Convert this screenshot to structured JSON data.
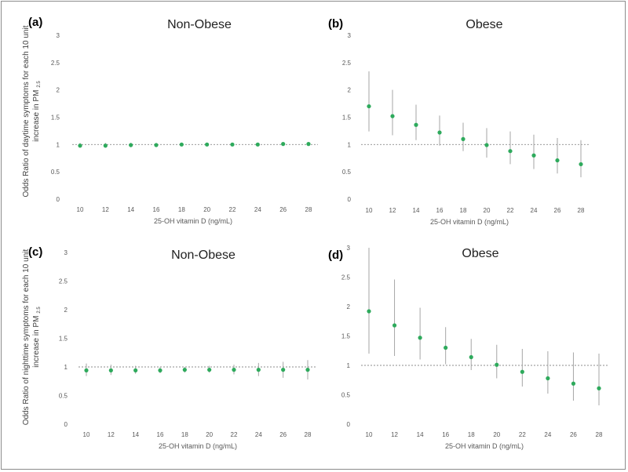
{
  "ylabels": {
    "top": {
      "line1": "Odds Ratio of daytime symptoms for each 10 unit",
      "line2": "increase in PM",
      "sub": "2.5"
    },
    "bottom": {
      "line1": "Odds Ratio of nighttime symptoms for each 10 unit",
      "line2": "increase in PM",
      "sub": "2.5"
    }
  },
  "colors": {
    "point": "#2eaa5c",
    "errorbar": "#a6a6a6",
    "refline": "#8c8c8c"
  },
  "chart_data": [
    {
      "id": "a",
      "panel_label": "(a)",
      "type": "scatter",
      "title": "Non-Obese",
      "xlabel": "25-OH vitamin D (ng/mL)",
      "x": [
        10,
        12,
        14,
        16,
        18,
        20,
        22,
        24,
        26,
        28
      ],
      "y": [
        0.98,
        0.98,
        0.99,
        0.99,
        1.0,
        1.0,
        1.0,
        1.0,
        1.01,
        1.01
      ],
      "lower": [
        0.94,
        0.94,
        0.95,
        0.96,
        0.97,
        0.98,
        0.98,
        0.98,
        0.98,
        0.98
      ],
      "upper": [
        1.03,
        1.03,
        1.03,
        1.02,
        1.02,
        1.02,
        1.02,
        1.03,
        1.03,
        1.04
      ],
      "ylim": [
        0,
        3
      ],
      "yticks": [
        "0",
        "0.5",
        "1",
        "1.5",
        "2",
        "2.5",
        "3"
      ],
      "reference_line": 1
    },
    {
      "id": "b",
      "panel_label": "(b)",
      "type": "scatter",
      "title": "Obese",
      "xlabel": "25-OH vitamin D (ng/mL)",
      "x": [
        10,
        12,
        14,
        16,
        18,
        20,
        22,
        24,
        26,
        28
      ],
      "y": [
        1.7,
        1.52,
        1.36,
        1.22,
        1.1,
        0.99,
        0.88,
        0.8,
        0.71,
        0.64
      ],
      "lower": [
        1.24,
        1.17,
        1.08,
        0.98,
        0.88,
        0.76,
        0.64,
        0.55,
        0.47,
        0.4
      ],
      "upper": [
        2.34,
        2.0,
        1.73,
        1.53,
        1.4,
        1.3,
        1.24,
        1.18,
        1.12,
        1.08
      ],
      "ylim": [
        0,
        3
      ],
      "yticks": [
        "0",
        "0.5",
        "1",
        "1.5",
        "2",
        "2.5",
        "3"
      ],
      "reference_line": 1
    },
    {
      "id": "c",
      "panel_label": "(c)",
      "type": "scatter",
      "title": "Non-Obese",
      "xlabel": "25-OH vitamin D (ng/mL)",
      "x": [
        10,
        12,
        14,
        16,
        18,
        20,
        22,
        24,
        26,
        28
      ],
      "y": [
        0.94,
        0.94,
        0.94,
        0.94,
        0.95,
        0.95,
        0.95,
        0.95,
        0.95,
        0.95
      ],
      "lower": [
        0.84,
        0.86,
        0.88,
        0.89,
        0.9,
        0.9,
        0.87,
        0.84,
        0.81,
        0.78
      ],
      "upper": [
        1.06,
        1.04,
        1.02,
        1.0,
        1.0,
        1.02,
        1.04,
        1.07,
        1.09,
        1.12
      ],
      "ylim": [
        0,
        3
      ],
      "yticks": [
        "0",
        "0.5",
        "1",
        "1.5",
        "2",
        "2.5",
        "3"
      ],
      "reference_line": 1
    },
    {
      "id": "d",
      "panel_label": "(d)",
      "type": "scatter",
      "title": "Obese",
      "xlabel": "25-OH vitamin D (ng/mL)",
      "x": [
        10,
        12,
        14,
        16,
        18,
        20,
        22,
        24,
        26,
        28
      ],
      "y": [
        1.92,
        1.68,
        1.47,
        1.3,
        1.14,
        1.01,
        0.89,
        0.78,
        0.69,
        0.61
      ],
      "lower": [
        1.2,
        1.16,
        1.1,
        1.02,
        0.92,
        0.78,
        0.64,
        0.52,
        0.4,
        0.32
      ],
      "upper": [
        3.0,
        2.46,
        1.98,
        1.65,
        1.45,
        1.35,
        1.28,
        1.24,
        1.22,
        1.2
      ],
      "ylim": [
        0,
        3
      ],
      "yticks": [
        "0",
        "0.5",
        "1",
        "1.5",
        "2",
        "2.5",
        "3"
      ],
      "reference_line": 1
    }
  ]
}
